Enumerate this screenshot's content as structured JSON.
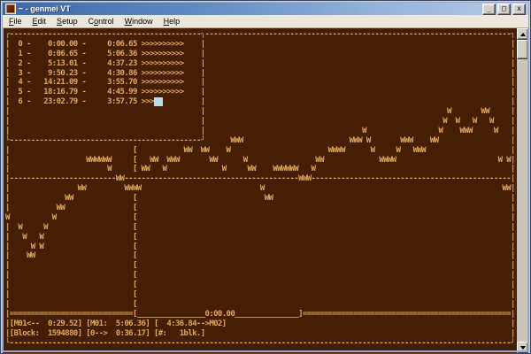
{
  "window": {
    "title": "~ - genmei VT",
    "buttons": [
      {
        "name": "minimize",
        "glyph": "_"
      },
      {
        "name": "maximize",
        "glyph": "□"
      },
      {
        "name": "close",
        "glyph": "x"
      }
    ]
  },
  "menu": {
    "items": [
      {
        "label": "File",
        "accel": "F"
      },
      {
        "label": "Edit",
        "accel": "E"
      },
      {
        "label": "Setup",
        "accel": "S"
      },
      {
        "label": "Control",
        "accel": "o"
      },
      {
        "label": "Window",
        "accel": "W"
      },
      {
        "label": "Help",
        "accel": "H"
      }
    ]
  },
  "tracks": [
    {
      "index": 0,
      "start": "0:00.00",
      "length": "0:06.65"
    },
    {
      "index": 1,
      "start": "0:06.65",
      "length": "5:06.36"
    },
    {
      "index": 2,
      "start": "5:13.01",
      "length": "4:37.23"
    },
    {
      "index": 3,
      "start": "9:50.23",
      "length": "4:30.86"
    },
    {
      "index": 4,
      "start": "14:21.09",
      "length": "3:55.70"
    },
    {
      "index": 5,
      "start": "18:16.79",
      "length": "4:45.99"
    },
    {
      "index": 6,
      "start": "23:02.79",
      "length": "3:57.75"
    }
  ],
  "status": {
    "marker_back": "[M01<--  0:29.52]",
    "marker_current": "[M01:  5:06.36]",
    "marker_forward": "[  4:36.84-->M02]",
    "block": "[Block:  1594880]",
    "position": "[0-->  0:36.17]",
    "block_count": "[#:   1blk.]",
    "timeline_time": "0:00.00"
  },
  "colors": {
    "terminal_bg": "#441f06",
    "terminal_fg": "#e2a65c",
    "cursor": "#b5ddef",
    "titlebar_left": "#3c68a7",
    "titlebar_right": "#b7cbe8",
    "menubar_bg": "#ece7da"
  },
  "scrollbar": {
    "up_icon": "up-arrow",
    "down_icon": "down-arrow"
  },
  "terminal": {
    "cols": 120,
    "cursor": {
      "row": 7,
      "col": 35,
      "width": 2
    },
    "rows": [
      [
        [
          0,
          "┌"
        ],
        [
          1,
          "-",
          45
        ],
        [
          46,
          "┐"
        ],
        [
          47,
          "-",
          72
        ],
        [
          119,
          "┐"
        ]
      ],
      [
        [
          0,
          "|"
        ],
        [
          3,
          "0"
        ],
        [
          5,
          "-"
        ],
        [
          10,
          "0:00.00"
        ],
        [
          18,
          "-"
        ],
        [
          24,
          "0:06.65"
        ],
        [
          32,
          ">>>>>>>>>>"
        ],
        [
          46,
          "|"
        ],
        [
          119,
          "|"
        ]
      ],
      [
        [
          0,
          "|"
        ],
        [
          3,
          "1"
        ],
        [
          5,
          "-"
        ],
        [
          10,
          "0:06.65"
        ],
        [
          18,
          "-"
        ],
        [
          24,
          "5:06.36"
        ],
        [
          32,
          ">>>>>>>>>>"
        ],
        [
          46,
          "|"
        ],
        [
          119,
          "|"
        ]
      ],
      [
        [
          0,
          "|"
        ],
        [
          3,
          "2"
        ],
        [
          5,
          "-"
        ],
        [
          10,
          "5:13.01"
        ],
        [
          18,
          "-"
        ],
        [
          24,
          "4:37.23"
        ],
        [
          32,
          ">>>>>>>>>>"
        ],
        [
          46,
          "|"
        ],
        [
          119,
          "|"
        ]
      ],
      [
        [
          0,
          "|"
        ],
        [
          3,
          "3"
        ],
        [
          5,
          "-"
        ],
        [
          10,
          "9:50.23"
        ],
        [
          18,
          "-"
        ],
        [
          24,
          "4:30.86"
        ],
        [
          32,
          ">>>>>>>>>>"
        ],
        [
          46,
          "|"
        ],
        [
          119,
          "|"
        ]
      ],
      [
        [
          0,
          "|"
        ],
        [
          3,
          "4"
        ],
        [
          5,
          "-"
        ],
        [
          9,
          "14:21.09"
        ],
        [
          18,
          "-"
        ],
        [
          24,
          "3:55.70"
        ],
        [
          32,
          ">>>>>>>>>>"
        ],
        [
          46,
          "|"
        ],
        [
          119,
          "|"
        ]
      ],
      [
        [
          0,
          "|"
        ],
        [
          3,
          "5"
        ],
        [
          5,
          "-"
        ],
        [
          9,
          "18:16.79"
        ],
        [
          18,
          "-"
        ],
        [
          24,
          "4:45.99"
        ],
        [
          32,
          ">>>>>>>>>>"
        ],
        [
          46,
          "|"
        ],
        [
          119,
          "|"
        ]
      ],
      [
        [
          0,
          "|"
        ],
        [
          3,
          "6"
        ],
        [
          5,
          "-"
        ],
        [
          9,
          "23:02.79"
        ],
        [
          18,
          "-"
        ],
        [
          24,
          "3:57.75"
        ],
        [
          32,
          ">>>"
        ],
        [
          46,
          "|"
        ],
        [
          119,
          "|"
        ]
      ],
      [
        [
          0,
          "|"
        ],
        [
          46,
          "|"
        ],
        [
          104,
          "W"
        ],
        [
          112,
          "WW"
        ],
        [
          119,
          "|"
        ]
      ],
      [
        [
          0,
          "|"
        ],
        [
          46,
          "|"
        ],
        [
          103,
          "W"
        ],
        [
          106,
          "W"
        ],
        [
          110,
          "W"
        ],
        [
          114,
          "W"
        ],
        [
          119,
          "|"
        ]
      ],
      [
        [
          0,
          "|"
        ],
        [
          46,
          "|"
        ],
        [
          84,
          "W"
        ],
        [
          102,
          "W"
        ],
        [
          107,
          "WWW"
        ],
        [
          115,
          "W"
        ],
        [
          119,
          "|"
        ]
      ],
      [
        [
          0,
          "└"
        ],
        [
          1,
          "-",
          45
        ],
        [
          46,
          "┘"
        ],
        [
          53,
          "WWW"
        ],
        [
          81,
          "WWW"
        ],
        [
          85,
          "W"
        ],
        [
          93,
          "WWW"
        ],
        [
          100,
          "WW"
        ],
        [
          119,
          "|"
        ]
      ],
      [
        [
          0,
          "|"
        ],
        [
          30,
          "["
        ],
        [
          42,
          "WW"
        ],
        [
          46,
          "WW"
        ],
        [
          52,
          "W"
        ],
        [
          76,
          "WWWW"
        ],
        [
          86,
          "W"
        ],
        [
          92,
          "W"
        ],
        [
          96,
          "WWW"
        ],
        [
          119,
          "|"
        ]
      ],
      [
        [
          0,
          "|"
        ],
        [
          19,
          "WWWWWW"
        ],
        [
          30,
          "["
        ],
        [
          34,
          "WW"
        ],
        [
          38,
          "WWW"
        ],
        [
          48,
          "WW"
        ],
        [
          56,
          "W"
        ],
        [
          73,
          "WW"
        ],
        [
          88,
          "WWWW"
        ],
        [
          116,
          "W"
        ],
        [
          118,
          "W"
        ],
        [
          119,
          "|"
        ]
      ],
      [
        [
          0,
          "|"
        ],
        [
          24,
          "W"
        ],
        [
          30,
          "["
        ],
        [
          32,
          "WW"
        ],
        [
          37,
          "W"
        ],
        [
          51,
          "W"
        ],
        [
          57,
          "WW"
        ],
        [
          63,
          "WWWWWW"
        ],
        [
          72,
          "W"
        ],
        [
          119,
          "|"
        ]
      ],
      [
        [
          0,
          "|"
        ],
        [
          1,
          "-",
          25
        ],
        [
          26,
          "WW"
        ],
        [
          28,
          "-",
          41
        ],
        [
          69,
          "WWW"
        ],
        [
          72,
          "-",
          47
        ],
        [
          119,
          "|"
        ]
      ],
      [
        [
          0,
          "|"
        ],
        [
          17,
          "WW"
        ],
        [
          28,
          "WWWW"
        ],
        [
          60,
          "W"
        ],
        [
          117,
          "WW"
        ],
        [
          119,
          "|"
        ]
      ],
      [
        [
          0,
          "|"
        ],
        [
          14,
          "WW"
        ],
        [
          30,
          "["
        ],
        [
          61,
          "WW"
        ],
        [
          119,
          "|"
        ]
      ],
      [
        [
          0,
          "|"
        ],
        [
          12,
          "WW"
        ],
        [
          30,
          "["
        ],
        [
          119,
          "|"
        ]
      ],
      [
        [
          0,
          "W"
        ],
        [
          11,
          "W"
        ],
        [
          30,
          "["
        ],
        [
          119,
          "|"
        ]
      ],
      [
        [
          0,
          "|"
        ],
        [
          3,
          "W"
        ],
        [
          9,
          "W"
        ],
        [
          30,
          "["
        ],
        [
          119,
          "|"
        ]
      ],
      [
        [
          0,
          "|"
        ],
        [
          4,
          "W"
        ],
        [
          8,
          "W"
        ],
        [
          30,
          "["
        ],
        [
          119,
          "|"
        ]
      ],
      [
        [
          0,
          "|"
        ],
        [
          6,
          "W"
        ],
        [
          8,
          "W"
        ],
        [
          30,
          "["
        ],
        [
          119,
          "|"
        ]
      ],
      [
        [
          0,
          "|"
        ],
        [
          5,
          "WW"
        ],
        [
          30,
          "["
        ],
        [
          119,
          "|"
        ]
      ],
      [
        [
          0,
          "|"
        ],
        [
          30,
          "["
        ],
        [
          119,
          "|"
        ]
      ],
      [
        [
          0,
          "|"
        ],
        [
          30,
          "["
        ],
        [
          119,
          "|"
        ]
      ],
      [
        [
          0,
          "|"
        ],
        [
          30,
          "["
        ],
        [
          119,
          "|"
        ]
      ],
      [
        [
          0,
          "|"
        ],
        [
          30,
          "["
        ],
        [
          119,
          "|"
        ]
      ],
      [
        [
          0,
          "|"
        ],
        [
          30,
          "["
        ],
        [
          119,
          "|"
        ]
      ],
      [
        [
          0,
          "|"
        ],
        [
          1,
          "=",
          29
        ],
        [
          30,
          "["
        ],
        [
          31,
          "_",
          16
        ],
        [
          47,
          "0:00.00"
        ],
        [
          54,
          "_",
          15
        ],
        [
          69,
          "]"
        ],
        [
          70,
          "=",
          49
        ],
        [
          119,
          "|"
        ]
      ],
      [
        [
          0,
          "|"
        ],
        [
          1,
          "[M01<--  0:29.52] [M01:  5:06.36] [  4:36.84-->M02]"
        ],
        [
          119,
          "|"
        ]
      ],
      [
        [
          0,
          "|"
        ],
        [
          1,
          "[Block:  1594880] [0-->  0:36.17] [#:   1blk.]"
        ],
        [
          119,
          "|"
        ]
      ],
      [
        [
          0,
          "└"
        ],
        [
          1,
          "-",
          118
        ],
        [
          119,
          "┘"
        ]
      ]
    ]
  }
}
